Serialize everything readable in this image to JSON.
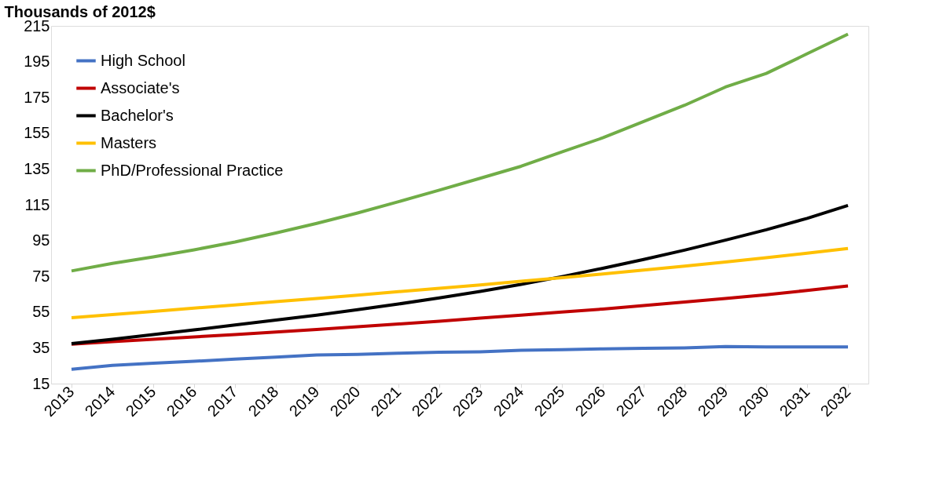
{
  "chart_data": {
    "type": "line",
    "ylabel": "Thousands of 2012$",
    "categories": [
      "2013",
      "2014",
      "2015",
      "2016",
      "2017",
      "2018",
      "2019",
      "2020",
      "2021",
      "2022",
      "2023",
      "2024",
      "2025",
      "2026",
      "2027",
      "2028",
      "2029",
      "2030",
      "2031",
      "2032"
    ],
    "series": [
      {
        "name": "High School",
        "color": "#4472c4",
        "values": [
          23,
          25.2,
          26.4,
          27.5,
          28.7,
          29.8,
          31,
          31.3,
          32,
          32.5,
          32.8,
          33.6,
          34,
          34.4,
          34.7,
          35,
          35.7,
          35.5,
          35.5,
          35.5
        ]
      },
      {
        "name": "Associate's",
        "color": "#c00000",
        "values": [
          37,
          38.5,
          39.8,
          41.1,
          42.4,
          43.8,
          45.3,
          46.8,
          48.3,
          49.9,
          51.6,
          53.3,
          55,
          56.7,
          58.6,
          60.6,
          62.6,
          64.7,
          67.1,
          69.6
        ]
      },
      {
        "name": "Bachelor's",
        "color": "#000000",
        "values": [
          37.4,
          39.8,
          42.4,
          45,
          47.8,
          50.5,
          53.3,
          56.3,
          59.5,
          62.9,
          66.5,
          70.5,
          74.8,
          79.5,
          84.4,
          89.6,
          95.2,
          101,
          107.4,
          114.6
        ]
      },
      {
        "name": "Masters",
        "color": "#ffc000",
        "values": [
          51.8,
          53.6,
          55.4,
          57.2,
          59,
          60.8,
          62.6,
          64.5,
          66.4,
          68.3,
          70.2,
          72.2,
          74.2,
          76.3,
          78.5,
          80.7,
          83,
          85.4,
          87.9,
          90.5
        ]
      },
      {
        "name": "PhD/Professional Practice",
        "color": "#70ad47",
        "values": [
          78,
          82.2,
          85.8,
          89.8,
          94.2,
          99.2,
          104.6,
          110.4,
          116.7,
          123.2,
          129.8,
          136.5,
          144.6,
          152.4,
          161.5,
          170.6,
          180.8,
          188.4,
          199.4,
          210.4
        ]
      }
    ],
    "ylim": [
      15,
      215
    ],
    "yticks": [
      15,
      35,
      55,
      75,
      95,
      115,
      135,
      155,
      175,
      195,
      215
    ],
    "grid": false,
    "legend": "top left",
    "marker": "none",
    "line_style": "solid"
  }
}
